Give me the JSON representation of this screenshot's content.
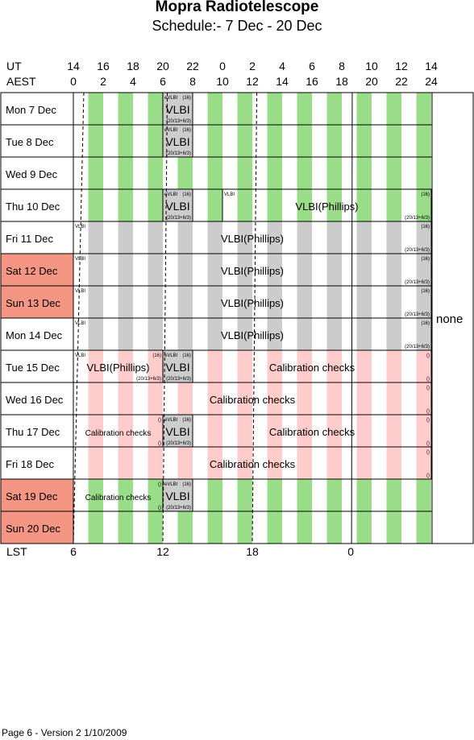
{
  "title": "Mopra Radiotelescope",
  "subtitle": "Schedule:- 7  Dec - 20 Dec",
  "axis": {
    "ut_label": "UT",
    "aest_label": "AEST",
    "lst_label": "LST",
    "ut_ticks": [
      "14",
      "16",
      "18",
      "20",
      "22",
      "0",
      "2",
      "4",
      "6",
      "8",
      "10",
      "12",
      "14"
    ],
    "aest_ticks": [
      "0",
      "2",
      "4",
      "6",
      "8",
      "10",
      "12",
      "14",
      "16",
      "18",
      "20",
      "22",
      "24"
    ],
    "lst_ticks": [
      "6",
      "12",
      "18",
      "0"
    ]
  },
  "days": [
    {
      "label": "Mon   7  Dec",
      "weekend": false
    },
    {
      "label": "Tue   8  Dec",
      "weekend": false
    },
    {
      "label": "Wed   9  Dec",
      "weekend": false
    },
    {
      "label": "Thu  10 Dec",
      "weekend": false
    },
    {
      "label": "Fri    11 Dec",
      "weekend": false
    },
    {
      "label": "Sat   12 Dec",
      "weekend": true
    },
    {
      "label": "Sun  13 Dec",
      "weekend": true
    },
    {
      "label": "Mon  14 Dec",
      "weekend": false
    },
    {
      "label": "Tue   15 Dec",
      "weekend": false
    },
    {
      "label": "Wed  16 Dec",
      "weekend": false
    },
    {
      "label": "Thu   17 Dec",
      "weekend": false
    },
    {
      "label": "Fri    18 Dec",
      "weekend": false
    },
    {
      "label": "Sat   19 Dec",
      "weekend": true
    },
    {
      "label": "Sun  20 Dec",
      "weekend": true
    }
  ],
  "bands": [
    "green",
    "green",
    "green",
    "green",
    "gray",
    "gray",
    "gray",
    "gray",
    "pink",
    "pink",
    "pink",
    "pink",
    "green",
    "green"
  ],
  "blocks": [
    {
      "row": 0,
      "from": 20,
      "to": 22,
      "main": "VLBI",
      "tl": "eVLBI",
      "tr": "(16)",
      "br": "(20/13+6/3)"
    },
    {
      "row": 1,
      "from": 20,
      "to": 22,
      "main": "VLBI",
      "tl": "eVLBI",
      "tr": "(16)",
      "br": "(20/13+6/3)"
    },
    {
      "row": 3,
      "from": 20,
      "to": 22,
      "main": "VLBI",
      "tl": "eVLBI",
      "tr": "(16)",
      "br": "(20/13+6/3)"
    },
    {
      "row": 3,
      "from": 24,
      "to": 38,
      "main": "VLBI(Phillips)",
      "tl": "VLBI",
      "tr": "(16)",
      "br": "(20/13+6/3)"
    },
    {
      "row": 4,
      "from": 14,
      "to": 38,
      "main": "VLBI(Phillips)",
      "tl": "VLBI",
      "tr": "(16)",
      "br": "(20/13+6/3)"
    },
    {
      "row": 5,
      "from": 14,
      "to": 38,
      "main": "VLBI(Phillips)",
      "tl": "VLBI",
      "tr": "(16)",
      "br": "(20/13+6/3)"
    },
    {
      "row": 6,
      "from": 14,
      "to": 38,
      "main": "VLBI(Phillips)",
      "tl": "VLBI",
      "tr": "(16)",
      "br": "(20/13+6/3)"
    },
    {
      "row": 7,
      "from": 14,
      "to": 38,
      "main": "VLBI(Phillips)",
      "tl": "VLBI",
      "tr": "(16)",
      "br": "(20/13+6/3)"
    },
    {
      "row": 8,
      "from": 14,
      "to": 20,
      "main": "VLBI(Phillips)",
      "tl": "VLBI",
      "tr": "(16)",
      "br": "(20/13+6/3)"
    },
    {
      "row": 8,
      "from": 20,
      "to": 22,
      "main": "VLBI",
      "tl": "eVLBI",
      "tr": "(16)",
      "br": "(20/13+6/3)"
    },
    {
      "row": 8,
      "from": 22,
      "to": 38,
      "main": "Calibration checks",
      "tl": "",
      "tr": "()",
      "br": "()"
    },
    {
      "row": 9,
      "from": 14,
      "to": 38,
      "main": "Calibration checks",
      "tl": "",
      "tr": "()",
      "br": "()"
    },
    {
      "row": 10,
      "from": 14,
      "to": 20,
      "main": "Calibration checks",
      "tl": "",
      "tr": "()",
      "br": "()",
      "small": true
    },
    {
      "row": 10,
      "from": 20,
      "to": 22,
      "main": "VLBI",
      "tl": "eVLBI",
      "tr": "(16)",
      "br": "(20/13+6/3)"
    },
    {
      "row": 10,
      "from": 22,
      "to": 38,
      "main": "Calibration checks",
      "tl": "",
      "tr": "()",
      "br": "()"
    },
    {
      "row": 11,
      "from": 14,
      "to": 38,
      "main": "Calibration checks",
      "tl": "",
      "tr": "()",
      "br": "()"
    },
    {
      "row": 12,
      "from": 14,
      "to": 20,
      "main": "Calibration checks",
      "tl": "",
      "tr": "()",
      "br": "()",
      "small": true
    },
    {
      "row": 12,
      "from": 20,
      "to": 22,
      "main": "VLBI",
      "tl": "eVLBI",
      "tr": "(16)",
      "br": "(20/13+6/3)"
    }
  ],
  "side_note": "none",
  "footer": "Page 6 - Version 2  1/10/2009",
  "colors": {
    "green": "#99dd88",
    "gray": "#cccccc",
    "pink": "#ffcccc",
    "weekend": "#f59684",
    "block_gray": "#cccccc",
    "block_white": "#ffffff"
  }
}
